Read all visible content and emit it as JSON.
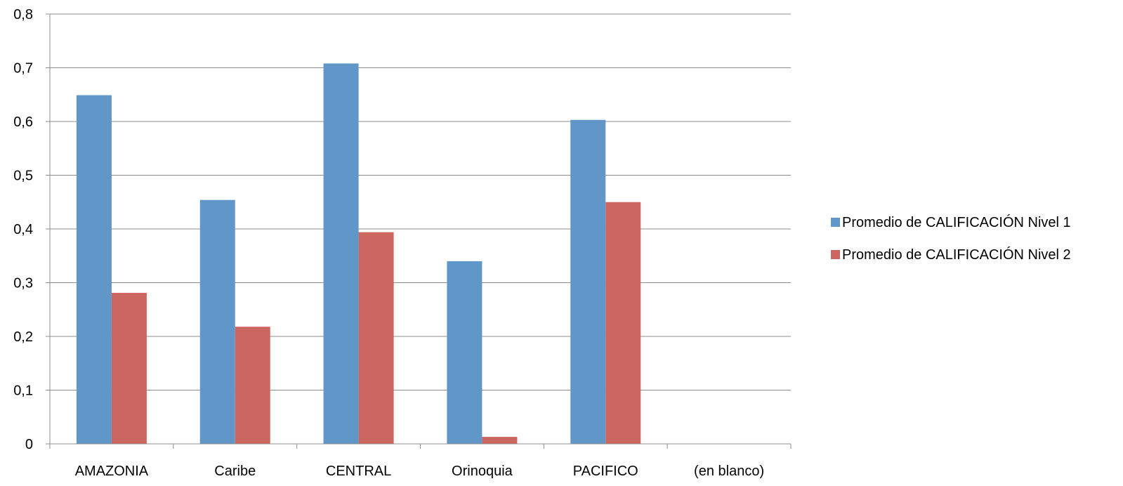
{
  "chart_data": {
    "type": "bar",
    "categories": [
      "AMAZONIA",
      "Caribe",
      "CENTRAL",
      "Orinoquia",
      "PACIFICO",
      "(en blanco)"
    ],
    "series": [
      {
        "name": "Promedio de CALIFICACIÓN Nivel 1",
        "values": [
          0.649,
          0.454,
          0.708,
          0.34,
          0.603,
          null
        ],
        "color": "#6096c8"
      },
      {
        "name": "Promedio de CALIFICACIÓN Nivel 2",
        "values": [
          0.281,
          0.218,
          0.394,
          0.013,
          0.45,
          null
        ],
        "color": "#cc6660"
      }
    ],
    "yticks": [
      "0",
      "0,1",
      "0,2",
      "0,3",
      "0,4",
      "0,5",
      "0,6",
      "0,7",
      "0,8"
    ],
    "ylim": [
      0,
      0.8
    ],
    "grid": true,
    "legend_position": "right"
  }
}
